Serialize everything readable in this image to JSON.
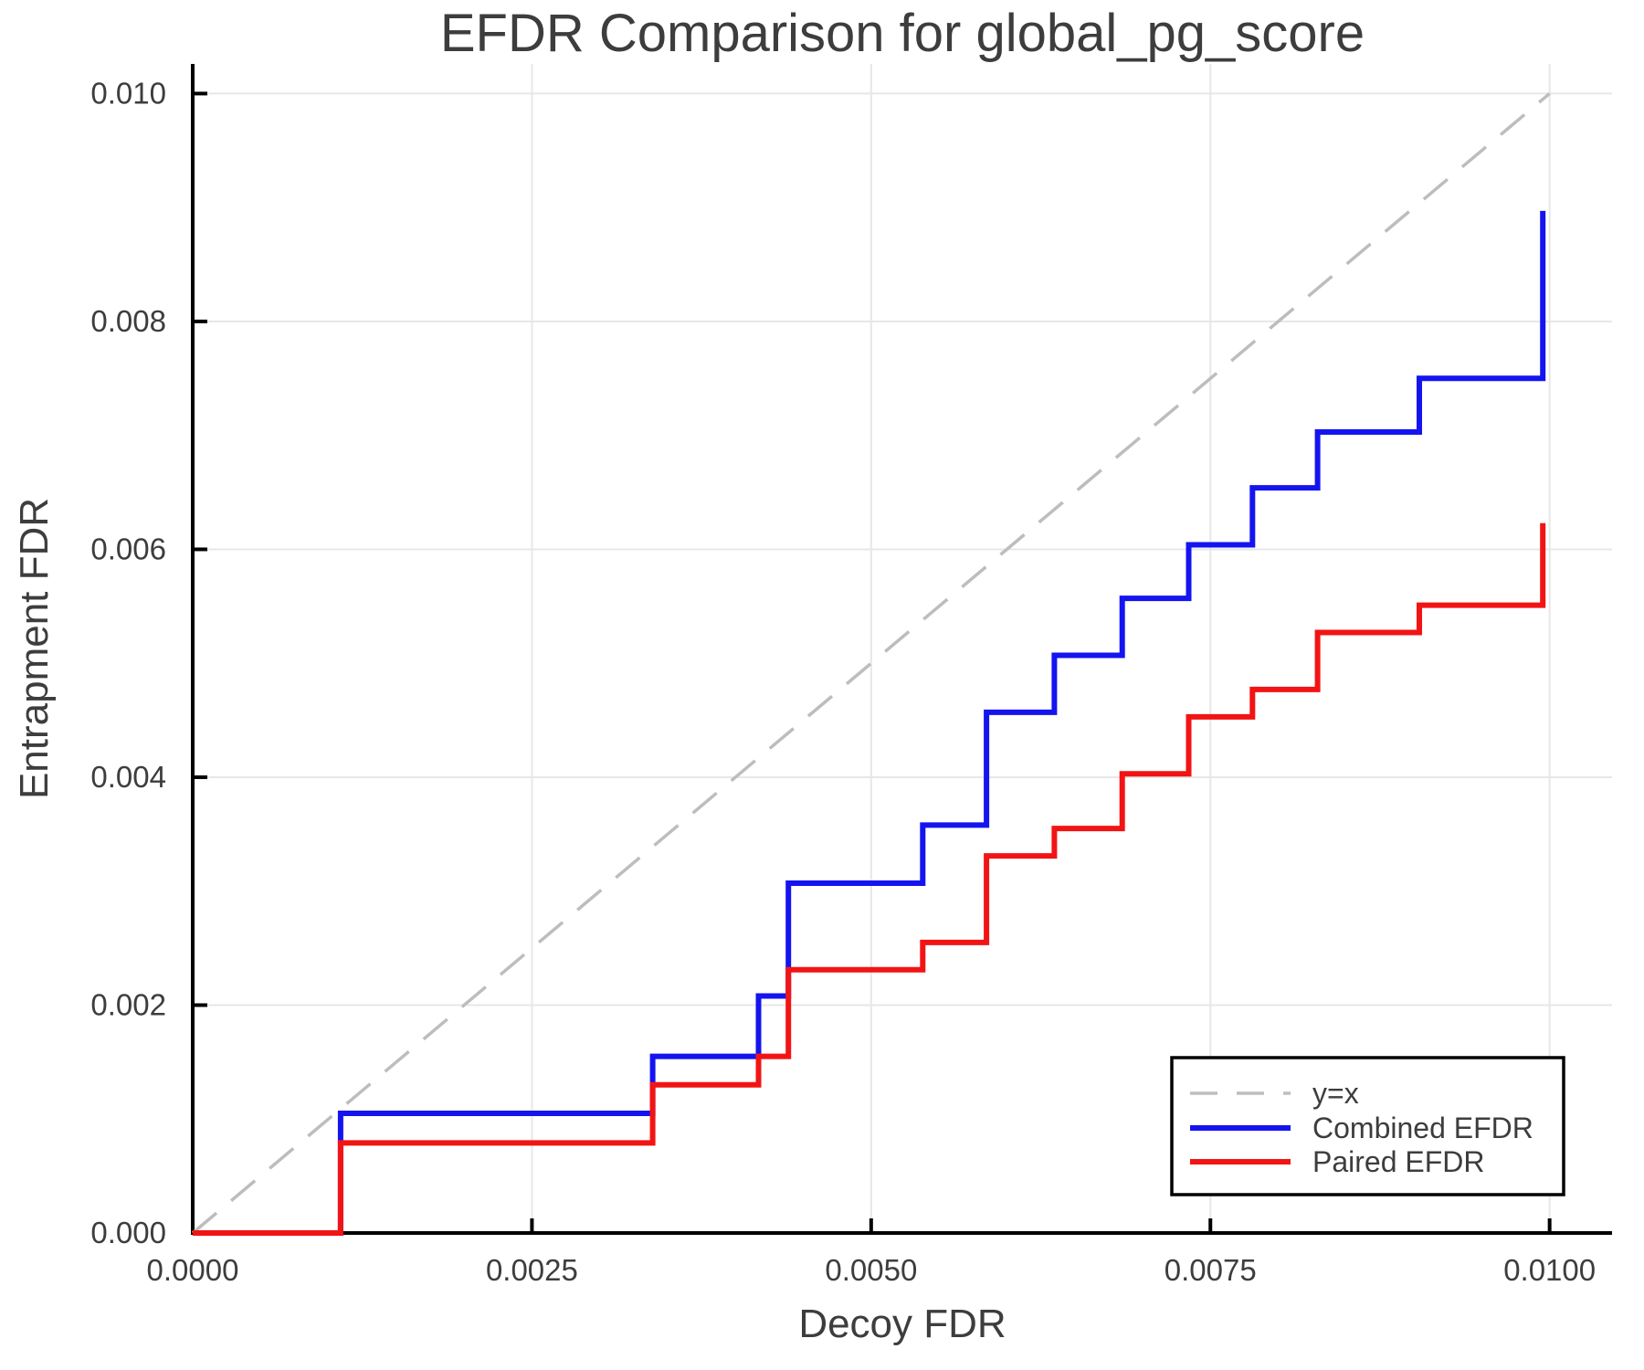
{
  "page": {
    "title": "EFDR Comparison for global_pg_score"
  },
  "style": {
    "background": "#ffffff",
    "text_color": "#3d3d3d",
    "grid_color": "#e7e7e7",
    "spine_color": "#000000",
    "combined_color": "#1414f0",
    "paired_color": "#f21414",
    "identity_color": "#bdbdbd"
  },
  "chart_data": {
    "type": "line",
    "step_style": "post",
    "title": "EFDR Comparison for global_pg_score",
    "xlabel": "Decoy FDR",
    "ylabel": "Entrapment FDR",
    "xlim": [
      0,
      0.01046
    ],
    "ylim": [
      0,
      0.01026
    ],
    "grid": true,
    "x_ticks": {
      "values": [
        0,
        0.0025,
        0.005,
        0.0075,
        0.01
      ],
      "labels": [
        "0.0000",
        "0.0025",
        "0.0050",
        "0.0075",
        "0.0100"
      ]
    },
    "y_ticks": {
      "values": [
        0,
        0.002,
        0.004,
        0.006,
        0.008,
        0.01
      ],
      "labels": [
        "0.000",
        "0.002",
        "0.004",
        "0.006",
        "0.008",
        "0.010"
      ]
    },
    "legend": {
      "position": "lower right",
      "entries": [
        "y=x",
        "Combined EFDR",
        "Paired EFDR"
      ]
    },
    "reference_line": {
      "label": "y=x",
      "style": "dashed",
      "color": "#bdbdbd",
      "from": [
        0,
        0
      ],
      "to": [
        0.01,
        0.01
      ]
    },
    "series": [
      {
        "name": "Combined EFDR",
        "color": "#1414f0",
        "start": [
          0,
          0
        ],
        "step_x": [
          0.00109,
          0.00339,
          0.00417,
          0.00439,
          0.00538,
          0.00585,
          0.00635,
          0.00685,
          0.00734,
          0.00781,
          0.00829,
          0.00904,
          0.00995
        ],
        "step_y": [
          0.00105,
          0.00155,
          0.00208,
          0.00307,
          0.00358,
          0.00457,
          0.00507,
          0.00557,
          0.00604,
          0.00654,
          0.00703,
          0.0075,
          0.00897
        ]
      },
      {
        "name": "Paired EFDR",
        "color": "#f21414",
        "start": [
          0,
          0
        ],
        "step_x": [
          0.00109,
          0.00339,
          0.00417,
          0.00439,
          0.00538,
          0.00585,
          0.00635,
          0.00685,
          0.00734,
          0.00781,
          0.00829,
          0.00904,
          0.00995
        ],
        "step_y": [
          0.00079,
          0.0013,
          0.00155,
          0.00231,
          0.00255,
          0.00331,
          0.00355,
          0.00403,
          0.00453,
          0.00477,
          0.00527,
          0.00551,
          0.00623
        ]
      }
    ]
  }
}
